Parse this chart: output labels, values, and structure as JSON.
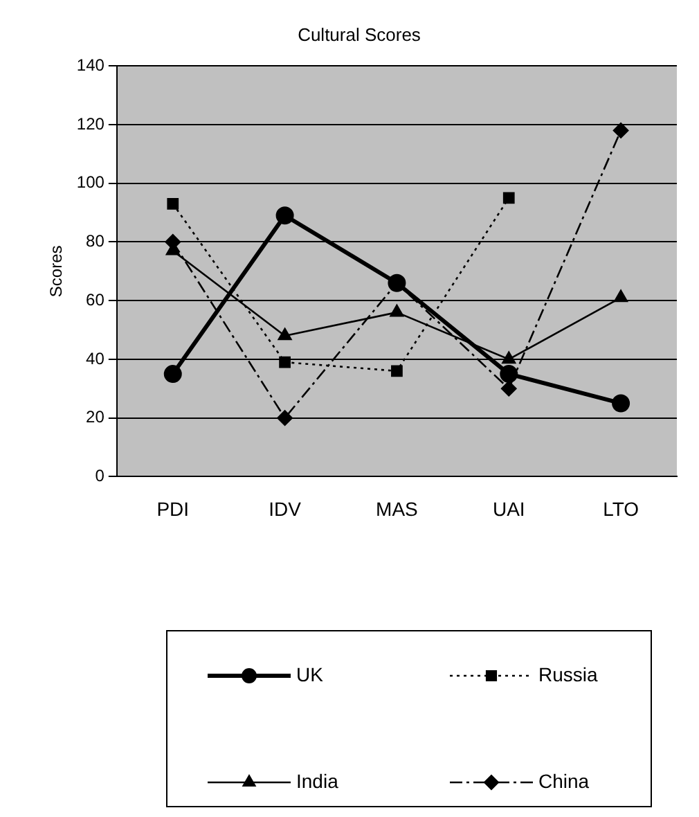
{
  "chart_data": {
    "type": "line",
    "title": "Cultural Scores",
    "ylabel": "Scores",
    "categories": [
      "PDI",
      "IDV",
      "MAS",
      "UAI",
      "LTO"
    ],
    "series": [
      {
        "name": "UK",
        "color": "#000000",
        "values": [
          35,
          89,
          66,
          35,
          25
        ],
        "marker": "circle",
        "line_style": "solid"
      },
      {
        "name": "Russia",
        "color": "#000000",
        "values": [
          93,
          39,
          36,
          95,
          null
        ],
        "marker": "square",
        "line_style": "dotted"
      },
      {
        "name": "India",
        "color": "#000000",
        "values": [
          77,
          48,
          56,
          40,
          61
        ],
        "marker": "triangle",
        "line_style": "solid"
      },
      {
        "name": "China",
        "color": "#000000",
        "values": [
          80,
          20,
          66,
          30,
          118
        ],
        "marker": "diamond",
        "line_style": "dashdot"
      }
    ],
    "ylim": [
      0,
      140
    ],
    "yticks": [
      0,
      20,
      40,
      60,
      80,
      100,
      120,
      140
    ],
    "grid": "y",
    "legend": "bottom"
  }
}
